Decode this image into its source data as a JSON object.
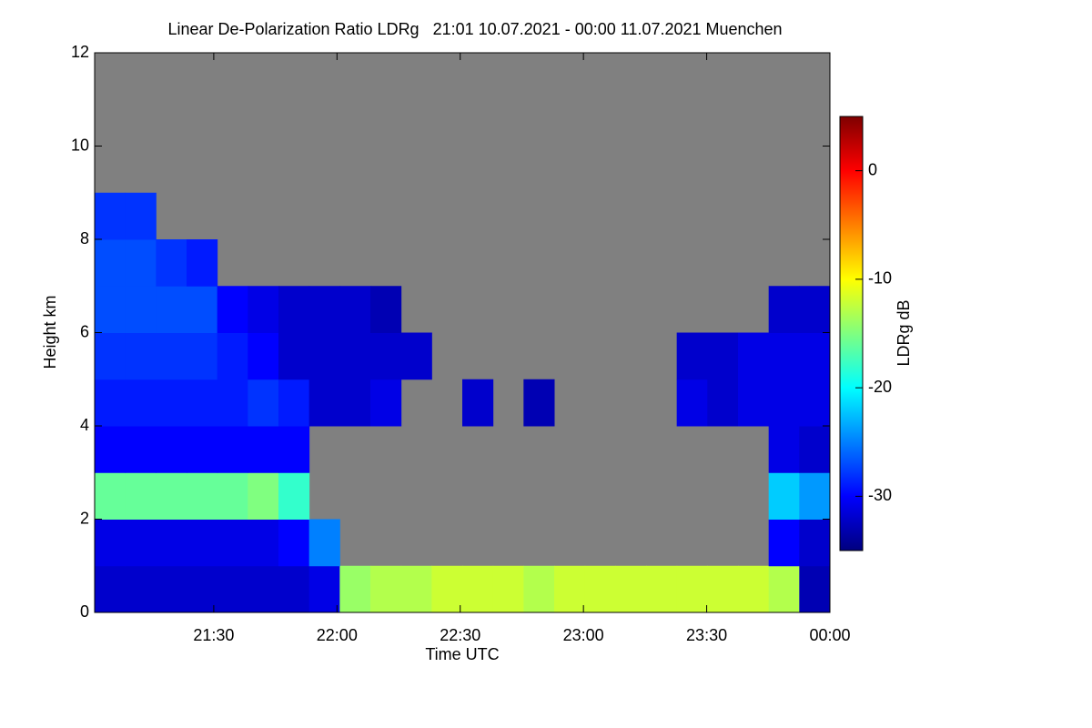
{
  "chart_data": {
    "type": "heatmap",
    "title": "Linear De-Polarization Ratio LDRg   21:01 10.07.2021 - 00:00 11.07.2021 Muenchen",
    "x_label": "Time UTC",
    "y_label": "Height km",
    "colorbar_label": "LDRg dB",
    "colormap": "jet",
    "missing_color": "#808080",
    "xlim": [
      21.0167,
      24.0
    ],
    "xticks": [
      {
        "value": 21.5,
        "label": "21:30"
      },
      {
        "value": 22.0,
        "label": "22:00"
      },
      {
        "value": 22.5,
        "label": "22:30"
      },
      {
        "value": 23.0,
        "label": "23:00"
      },
      {
        "value": 23.5,
        "label": "23:30"
      },
      {
        "value": 24.0,
        "label": "00:00"
      }
    ],
    "ylim": [
      0,
      12
    ],
    "yticks": [
      0,
      2,
      4,
      6,
      8,
      10,
      12
    ],
    "zlim": [
      -35,
      5
    ],
    "zticks": [
      -30,
      -20,
      -10,
      0
    ],
    "z": [
      [
        -32,
        -32,
        -32,
        -32,
        -32,
        -32,
        -32,
        -31,
        -14,
        -13,
        -13,
        -12,
        -12,
        -12,
        -13,
        -12,
        -12,
        -12,
        -12,
        -12,
        -12,
        -12,
        -13,
        -33
      ],
      [
        -31,
        -31,
        -31,
        -31,
        -31,
        -31,
        -30,
        -25,
        null,
        null,
        null,
        null,
        null,
        null,
        null,
        null,
        null,
        null,
        null,
        null,
        null,
        null,
        -30,
        -32
      ],
      [
        -16,
        -16,
        -16,
        -16,
        -16,
        -15,
        -18,
        null,
        null,
        null,
        null,
        null,
        null,
        null,
        null,
        null,
        null,
        null,
        null,
        null,
        null,
        null,
        -22,
        -24
      ],
      [
        -30,
        -30,
        -30,
        -30,
        -30,
        -30,
        -30,
        null,
        null,
        null,
        null,
        null,
        null,
        null,
        null,
        null,
        null,
        null,
        null,
        null,
        null,
        null,
        -31,
        -32
      ],
      [
        -29,
        -29,
        -29,
        -29,
        -29,
        -28,
        -29,
        -32,
        -32,
        -31,
        null,
        null,
        -32,
        null,
        -33,
        null,
        null,
        null,
        null,
        -31,
        -32,
        -31,
        -31,
        -31
      ],
      [
        -28,
        -28,
        -28,
        -28,
        -29,
        -30,
        -32,
        -32,
        -32,
        -32,
        -32,
        null,
        null,
        null,
        null,
        null,
        null,
        null,
        null,
        -32,
        -32,
        -31,
        -31,
        -31
      ],
      [
        -27,
        -27,
        -27,
        -27,
        -30,
        -31,
        -32,
        -32,
        -32,
        -33,
        null,
        null,
        null,
        null,
        null,
        null,
        null,
        null,
        null,
        null,
        null,
        null,
        -32,
        -32
      ],
      [
        -27,
        -27,
        -28,
        -29,
        null,
        null,
        null,
        null,
        null,
        null,
        null,
        null,
        null,
        null,
        null,
        null,
        null,
        null,
        null,
        null,
        null,
        null,
        null,
        null
      ],
      [
        -28,
        -28,
        null,
        null,
        null,
        null,
        null,
        null,
        null,
        null,
        null,
        null,
        null,
        null,
        null,
        null,
        null,
        null,
        null,
        null,
        null,
        null,
        null,
        null
      ],
      [
        null,
        null,
        null,
        null,
        null,
        null,
        null,
        null,
        null,
        null,
        null,
        null,
        null,
        null,
        null,
        null,
        null,
        null,
        null,
        null,
        null,
        null,
        null,
        null
      ],
      [
        null,
        null,
        null,
        null,
        null,
        null,
        null,
        null,
        null,
        null,
        null,
        null,
        null,
        null,
        null,
        null,
        null,
        null,
        null,
        null,
        null,
        null,
        null,
        null
      ],
      [
        null,
        null,
        null,
        null,
        null,
        null,
        null,
        null,
        null,
        null,
        null,
        null,
        null,
        null,
        null,
        null,
        null,
        null,
        null,
        null,
        null,
        null,
        null,
        null
      ]
    ]
  }
}
